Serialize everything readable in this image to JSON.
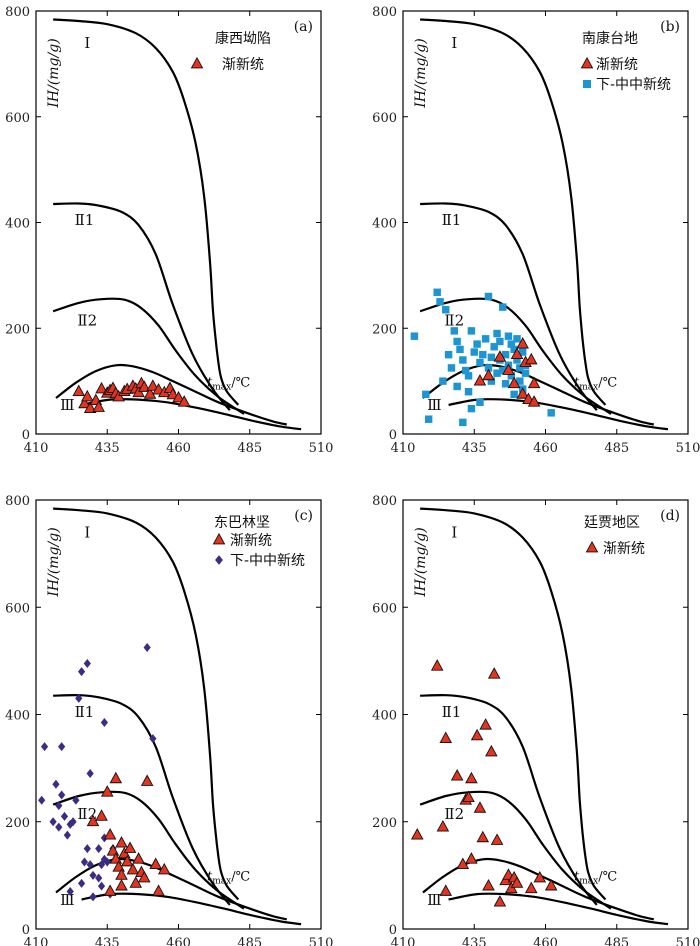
{
  "chart_data": {
    "type": "scatter",
    "common": {
      "xlim": [
        410,
        510
      ],
      "ylim": [
        0,
        800
      ],
      "x_ticks": [
        410,
        435,
        460,
        485,
        510
      ],
      "y_ticks": [
        0,
        200,
        400,
        600,
        800
      ],
      "ylabel": "IH/(mg/g)",
      "xlabel_main": "t",
      "xlabel_sub": "max",
      "xlabel_unit": "/℃",
      "zone_labels": [
        {
          "text": "Ⅰ",
          "x": 428,
          "y": 730
        },
        {
          "text": "Ⅱ1",
          "x": 427,
          "y": 395
        },
        {
          "text": "Ⅱ2",
          "x": 428,
          "y": 205
        },
        {
          "text": "Ⅲ",
          "x": 421,
          "y": 45
        }
      ],
      "boundary_curves": [
        {
          "name": "upper-boundary",
          "x": [
            416,
            425,
            435,
            445,
            452,
            458,
            462,
            466,
            469,
            471,
            472,
            473,
            474,
            475,
            477,
            481
          ],
          "y": [
            784,
            781,
            775,
            758,
            730,
            685,
            630,
            550,
            450,
            330,
            240,
            180,
            135,
            105,
            80,
            55
          ]
        },
        {
          "name": "II1-boundary",
          "x": [
            416,
            425,
            432,
            440,
            446,
            452,
            458,
            465,
            472,
            478
          ],
          "y": [
            435,
            436,
            432,
            420,
            395,
            340,
            245,
            150,
            85,
            45
          ]
        },
        {
          "name": "II2-boundary",
          "x": [
            416,
            425,
            433,
            441,
            447,
            453,
            459,
            466,
            474,
            483
          ],
          "y": [
            232,
            248,
            255,
            254,
            238,
            205,
            158,
            110,
            70,
            38
          ]
        },
        {
          "name": "III-upper-boundary",
          "x": [
            417,
            424,
            431,
            438,
            444,
            451,
            458,
            466,
            474,
            485,
            493,
            498
          ],
          "y": [
            68,
            97,
            119,
            130,
            128,
            117,
            100,
            80,
            60,
            38,
            24,
            18
          ]
        },
        {
          "name": "III-lower-boundary",
          "x": [
            426,
            436,
            446,
            456,
            466,
            476,
            486,
            496,
            503
          ],
          "y": [
            55,
            65,
            65,
            60,
            50,
            38,
            25,
            14,
            9
          ]
        }
      ]
    },
    "panels": [
      {
        "label": "(a)",
        "region": "康西坳陷",
        "legend": [
          {
            "name": "渐新统",
            "marker": "triangle",
            "color": "#e2341f"
          }
        ],
        "series": [
          {
            "name": "渐新统",
            "marker": "triangle",
            "color": "#e2341f",
            "points": [
              [
                425,
                80
              ],
              [
                427,
                57
              ],
              [
                428,
                70
              ],
              [
                429,
                48
              ],
              [
                431,
                63
              ],
              [
                432,
                50
              ],
              [
                433,
                85
              ],
              [
                435,
                77
              ],
              [
                436,
                82
              ],
              [
                437,
                86
              ],
              [
                438,
                76
              ],
              [
                439,
                70
              ],
              [
                441,
                80
              ],
              [
                442,
                84
              ],
              [
                444,
                90
              ],
              [
                445,
                85
              ],
              [
                446,
                78
              ],
              [
                447,
                95
              ],
              [
                448,
                88
              ],
              [
                450,
                75
              ],
              [
                451,
                90
              ],
              [
                453,
                83
              ],
              [
                455,
                78
              ],
              [
                457,
                86
              ],
              [
                458,
                74
              ],
              [
                460,
                68
              ],
              [
                462,
                60
              ]
            ]
          }
        ]
      },
      {
        "label": "(b)",
        "region": "南康台地",
        "legend": [
          {
            "name": "渐新统",
            "marker": "triangle",
            "color": "#e2341f"
          },
          {
            "name": "下-中中新统",
            "marker": "square",
            "color": "#1e95d3"
          }
        ],
        "series": [
          {
            "name": "下-中中新统",
            "marker": "square",
            "color": "#1e95d3",
            "points": [
              [
                414,
                185
              ],
              [
                418,
                75
              ],
              [
                419,
                28
              ],
              [
                422,
                268
              ],
              [
                423,
                250
              ],
              [
                424,
                100
              ],
              [
                425,
                235
              ],
              [
                426,
                150
              ],
              [
                427,
                125
              ],
              [
                428,
                195
              ],
              [
                429,
                175
              ],
              [
                429,
                90
              ],
              [
                430,
                160
              ],
              [
                431,
                140
              ],
              [
                432,
                120
              ],
              [
                433,
                110
              ],
              [
                433,
                80
              ],
              [
                434,
                195
              ],
              [
                434,
                48
              ],
              [
                435,
                155
              ],
              [
                436,
                170
              ],
              [
                437,
                135
              ],
              [
                437,
                60
              ],
              [
                438,
                150
              ],
              [
                439,
                180
              ],
              [
                440,
                260
              ],
              [
                440,
                125
              ],
              [
                441,
                145
              ],
              [
                441,
                100
              ],
              [
                442,
                165
              ],
              [
                443,
                115
              ],
              [
                443,
                190
              ],
              [
                444,
                175
              ],
              [
                444,
                140
              ],
              [
                445,
                120
              ],
              [
                445,
                240
              ],
              [
                446,
                150
              ],
              [
                446,
                95
              ],
              [
                447,
                130
              ],
              [
                447,
                185
              ],
              [
                448,
                170
              ],
              [
                448,
                110
              ],
              [
                449,
                160
              ],
              [
                449,
                75
              ],
              [
                450,
                140
              ],
              [
                450,
                180
              ],
              [
                451,
                125
              ],
              [
                451,
                100
              ],
              [
                452,
                155
              ],
              [
                452,
                85
              ],
              [
                453,
                130
              ],
              [
                453,
                115
              ],
              [
                462,
                40
              ],
              [
                431,
                22
              ]
            ]
          },
          {
            "name": "渐新统",
            "marker": "triangle",
            "color": "#e2341f",
            "points": [
              [
                437,
                100
              ],
              [
                440,
                110
              ],
              [
                444,
                145
              ],
              [
                447,
                120
              ],
              [
                449,
                95
              ],
              [
                450,
                150
              ],
              [
                452,
                170
              ],
              [
                452,
                75
              ],
              [
                453,
                135
              ],
              [
                454,
                65
              ],
              [
                455,
                140
              ],
              [
                456,
                95
              ],
              [
                456,
                60
              ]
            ]
          }
        ]
      },
      {
        "label": "(c)",
        "region": "东巴林坚",
        "legend": [
          {
            "name": "渐新统",
            "marker": "triangle",
            "color": "#e2341f"
          },
          {
            "name": "下-中中新统",
            "marker": "diamond",
            "color": "#3b2d86"
          }
        ],
        "series": [
          {
            "name": "下-中中新统",
            "marker": "diamond",
            "color": "#3b2d86",
            "points": [
              [
                412,
                240
              ],
              [
                413,
                340
              ],
              [
                416,
                200
              ],
              [
                417,
                270
              ],
              [
                418,
                230
              ],
              [
                419,
                340
              ],
              [
                418,
                190
              ],
              [
                419,
                250
              ],
              [
                420,
                210
              ],
              [
                421,
                175
              ],
              [
                422,
                195
              ],
              [
                423,
                200
              ],
              [
                424,
                240
              ],
              [
                425,
                430
              ],
              [
                426,
                480
              ],
              [
                426,
                85
              ],
              [
                427,
                125
              ],
              [
                428,
                495
              ],
              [
                428,
                150
              ],
              [
                429,
                290
              ],
              [
                430,
                100
              ],
              [
                430,
                60
              ],
              [
                432,
                150
              ],
              [
                432,
                95
              ],
              [
                433,
                120
              ],
              [
                433,
                80
              ],
              [
                434,
                170
              ],
              [
                434,
                130
              ],
              [
                434,
                385
              ],
              [
                435,
                125
              ],
              [
                436,
                65
              ],
              [
                437,
                150
              ],
              [
                449,
                525
              ],
              [
                451,
                355
              ],
              [
                422,
                70
              ],
              [
                429,
                120
              ]
            ]
          },
          {
            "name": "渐新统",
            "marker": "triangle",
            "color": "#e2341f",
            "points": [
              [
                430,
                200
              ],
              [
                433,
                210
              ],
              [
                435,
                255
              ],
              [
                436,
                175
              ],
              [
                437,
                145
              ],
              [
                438,
                130
              ],
              [
                438,
                280
              ],
              [
                439,
                115
              ],
              [
                440,
                160
              ],
              [
                440,
                100
              ],
              [
                441,
                140
              ],
              [
                442,
                125
              ],
              [
                443,
                150
              ],
              [
                444,
                110
              ],
              [
                445,
                85
              ],
              [
                446,
                130
              ],
              [
                447,
                105
              ],
              [
                448,
                95
              ],
              [
                449,
                275
              ],
              [
                452,
                120
              ],
              [
                453,
                70
              ],
              [
                455,
                110
              ],
              [
                436,
                70
              ],
              [
                440,
                80
              ]
            ]
          }
        ]
      },
      {
        "label": "(d)",
        "region": "廷贾地区",
        "legend": [
          {
            "name": "渐新统",
            "marker": "triangle",
            "color": "#e2341f"
          }
        ],
        "series": [
          {
            "name": "渐新统",
            "marker": "triangle",
            "color": "#e2341f",
            "points": [
              [
                415,
                175
              ],
              [
                422,
                490
              ],
              [
                424,
                190
              ],
              [
                425,
                355
              ],
              [
                425,
                70
              ],
              [
                429,
                285
              ],
              [
                431,
                120
              ],
              [
                432,
                240
              ],
              [
                433,
                245
              ],
              [
                434,
                130
              ],
              [
                434,
                280
              ],
              [
                436,
                360
              ],
              [
                437,
                225
              ],
              [
                438,
                170
              ],
              [
                439,
                380
              ],
              [
                440,
                80
              ],
              [
                441,
                330
              ],
              [
                442,
                475
              ],
              [
                443,
                165
              ],
              [
                444,
                50
              ],
              [
                446,
                90
              ],
              [
                447,
                100
              ],
              [
                448,
                75
              ],
              [
                449,
                95
              ],
              [
                450,
                85
              ],
              [
                455,
                75
              ],
              [
                458,
                95
              ],
              [
                462,
                80
              ]
            ]
          }
        ]
      }
    ]
  }
}
